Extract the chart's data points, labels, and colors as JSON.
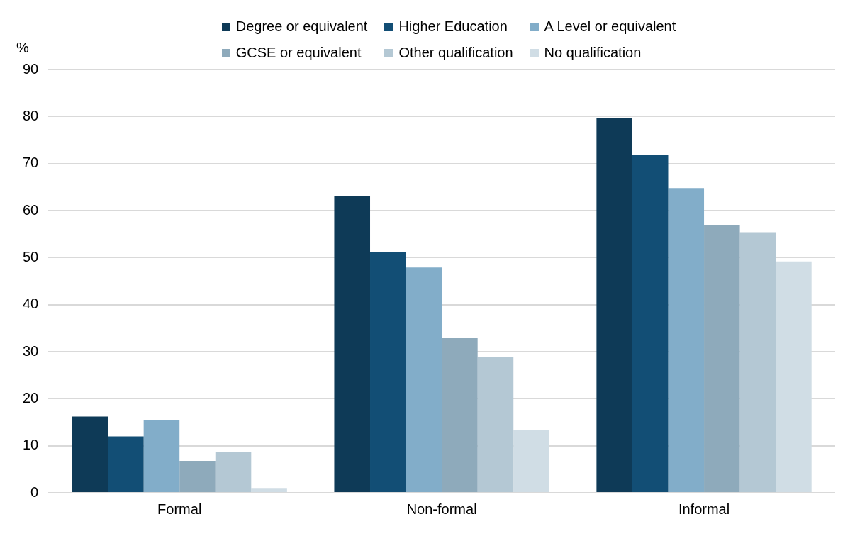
{
  "chart_data": {
    "type": "bar",
    "ylabel": "%",
    "categories": [
      "Formal",
      "Non-formal",
      "Informal"
    ],
    "series": [
      {
        "name": "Degree or equivalent",
        "color": "#0e3a57",
        "values": [
          16.2,
          63.1,
          79.6
        ]
      },
      {
        "name": "Higher Education",
        "color": "#124e75",
        "values": [
          12.0,
          51.2,
          71.8
        ]
      },
      {
        "name": "A Level or equivalent",
        "color": "#82adc9",
        "values": [
          15.4,
          47.9,
          64.8
        ]
      },
      {
        "name": "GCSE or equivalent",
        "color": "#8eaabb",
        "values": [
          6.8,
          33.0,
          57.0
        ]
      },
      {
        "name": "Other qualification",
        "color": "#b4c8d4",
        "values": [
          8.6,
          28.9,
          55.4
        ]
      },
      {
        "name": "No qualification",
        "color": "#d0dde5",
        "values": [
          1.0,
          13.3,
          49.2
        ]
      }
    ],
    "ylim": [
      0,
      90
    ],
    "yticks": [
      0,
      10,
      20,
      30,
      40,
      50,
      60,
      70,
      80,
      90
    ],
    "grid": "y",
    "legend": "top"
  }
}
